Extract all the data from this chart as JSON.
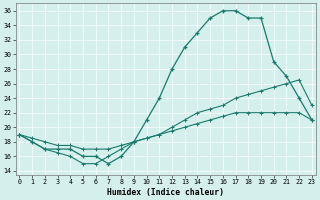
{
  "title": "",
  "xlabel": "Humidex (Indice chaleur)",
  "ylabel": "",
  "bg_color": "#d4efec",
  "line_color": "#1a7a6e",
  "xlim": [
    -0.3,
    23.3
  ],
  "ylim": [
    13.5,
    37
  ],
  "xticks": [
    0,
    1,
    2,
    3,
    4,
    5,
    6,
    7,
    8,
    9,
    10,
    11,
    12,
    13,
    14,
    15,
    16,
    17,
    18,
    19,
    20,
    21,
    22,
    23
  ],
  "yticks": [
    14,
    16,
    18,
    20,
    22,
    24,
    26,
    28,
    30,
    32,
    34,
    36
  ],
  "line1_x": [
    0,
    1,
    2,
    3,
    4,
    5,
    6,
    7,
    8,
    9,
    10,
    11,
    12,
    13,
    14,
    15,
    16,
    17,
    18,
    19,
    20,
    21,
    22,
    23
  ],
  "line1_y": [
    19,
    18,
    17,
    17,
    17,
    16,
    16,
    15,
    16,
    18,
    21,
    24,
    28,
    31,
    33,
    35,
    36,
    36,
    35,
    35,
    29,
    27,
    24,
    21
  ],
  "line2_x": [
    0,
    1,
    2,
    3,
    4,
    5,
    6,
    7,
    8,
    9,
    10,
    11,
    12,
    13,
    14,
    15,
    16,
    17,
    18,
    19,
    20,
    21,
    22,
    23
  ],
  "line2_y": [
    19,
    18.5,
    18,
    17.5,
    17.5,
    17,
    17,
    17,
    17.5,
    18,
    18.5,
    19,
    20,
    21,
    22,
    22.5,
    23,
    24,
    24.5,
    25,
    25.5,
    26,
    26.5,
    23
  ],
  "line3_x": [
    0,
    2,
    3,
    4,
    5,
    6,
    7,
    8,
    9,
    10,
    11,
    12,
    13,
    14,
    15,
    16,
    17,
    18,
    19,
    20,
    21,
    22,
    23
  ],
  "line3_y": [
    19,
    17,
    16.5,
    16,
    15,
    15,
    16,
    17,
    18,
    18.5,
    19,
    19.5,
    20,
    20.5,
    21,
    21.5,
    22,
    22,
    22,
    22,
    22,
    22,
    21
  ]
}
